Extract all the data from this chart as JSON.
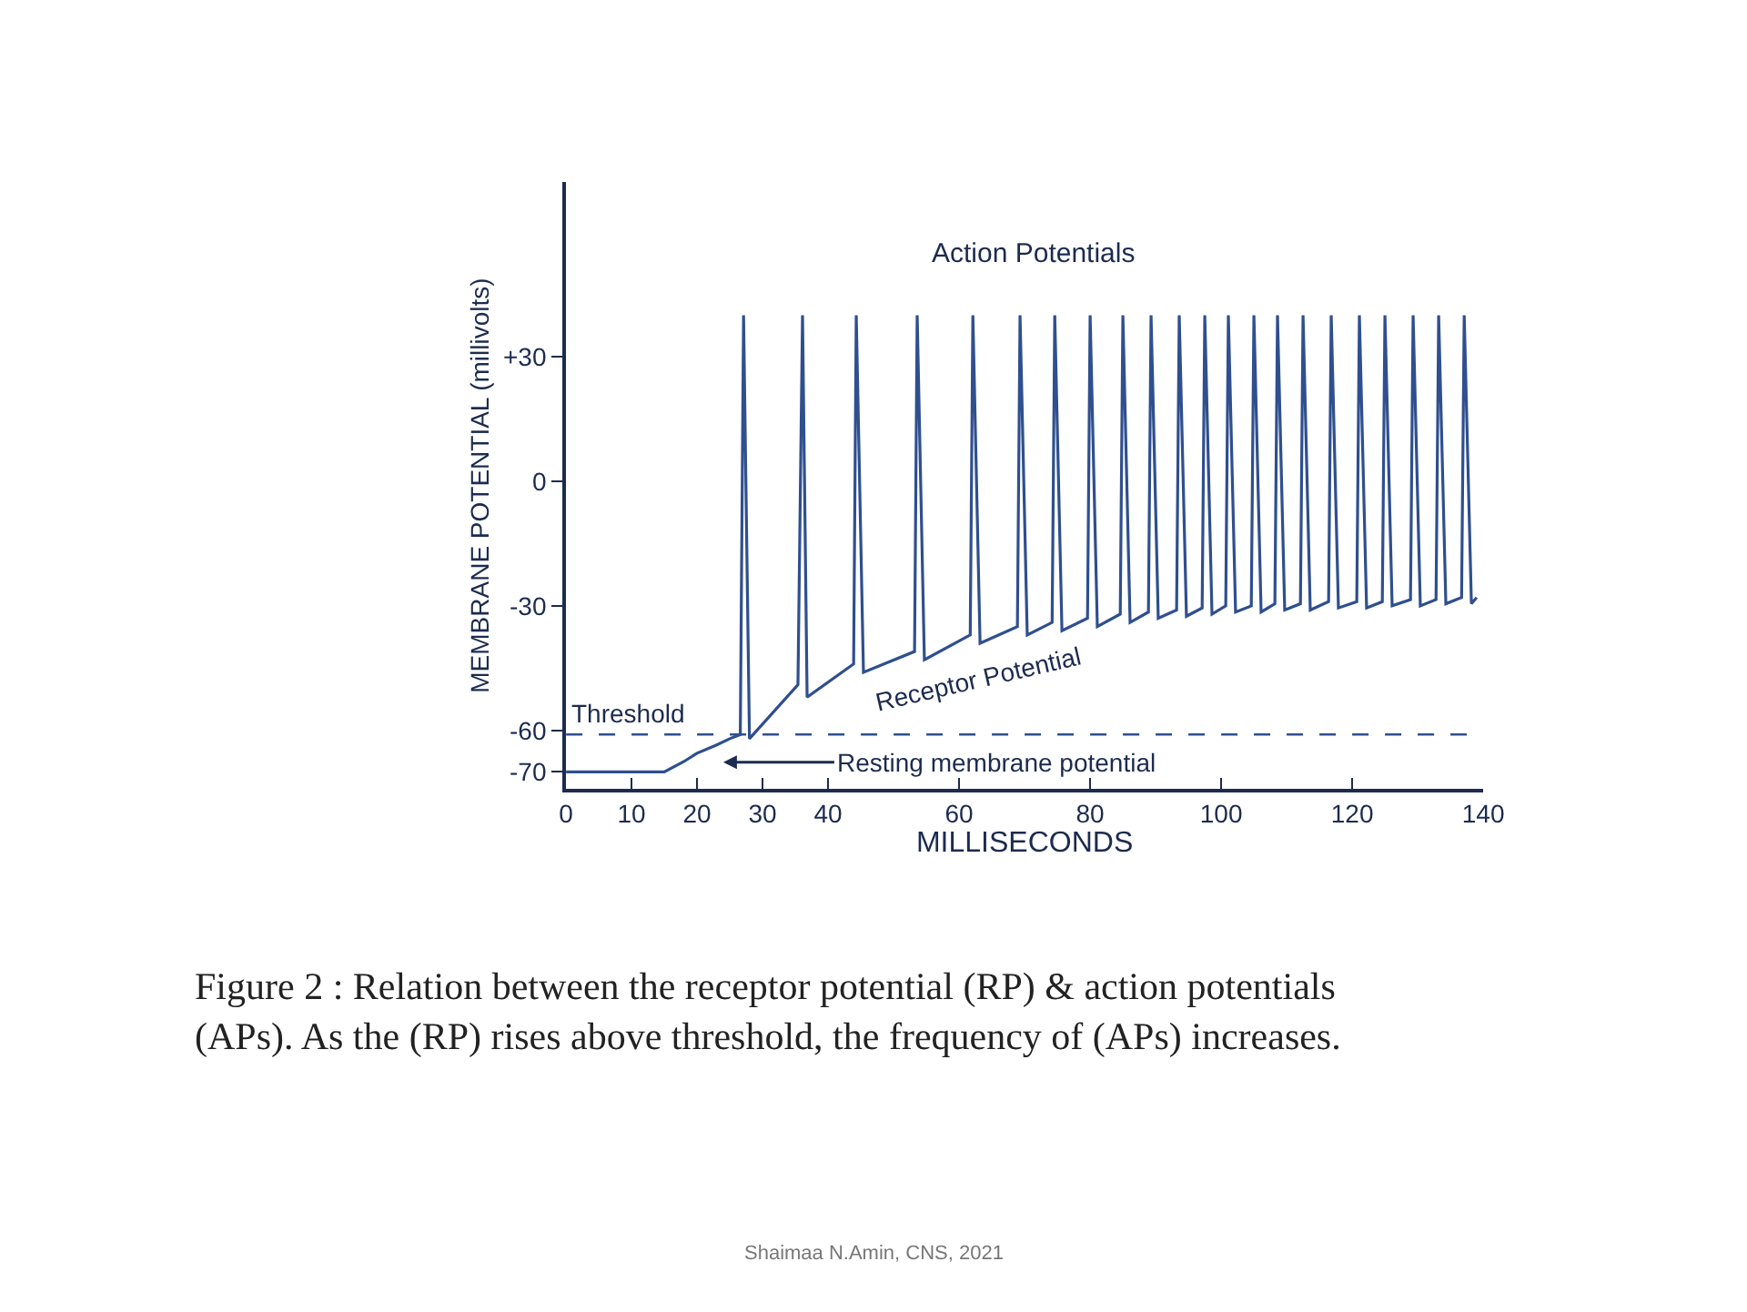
{
  "chart_data": [
    {
      "type": "line",
      "xlabel": "MILLISECONDS",
      "ylabel": "MEMBRANE POTENTIAL (millivolts)",
      "xlim": [
        0,
        140
      ],
      "xticks": [
        0,
        10,
        20,
        30,
        40,
        60,
        80,
        100,
        120,
        140
      ],
      "ylim": [
        -74,
        72
      ],
      "yticks": [
        -70,
        -60,
        -30,
        0,
        {
          "value": 30,
          "label": "+30"
        }
      ],
      "marker": "none",
      "line_style": "solid",
      "series": [
        {
          "color": "#2f4f8f",
          "x": [
            0,
            15,
            18,
            20,
            23,
            25,
            26.6,
            27.1,
            28,
            35.4,
            36.1,
            36.8,
            43.9,
            44.3,
            45.4,
            53.2,
            53.6,
            54.7,
            61.7,
            62.1,
            63.2,
            68.9,
            69.3,
            70.4,
            74.2,
            74.6,
            75.7,
            79.6,
            80,
            81.1,
            84.6,
            85,
            86.1,
            88.9,
            89.3,
            90.4,
            93.2,
            93.6,
            94.7,
            97.1,
            97.5,
            98.6,
            100.7,
            101.1,
            102.2,
            104.6,
            105,
            106.1,
            108.2,
            108.6,
            109.7,
            112.1,
            112.5,
            113.6,
            116.4,
            116.8,
            117.9,
            120.7,
            121.1,
            122.2,
            124.6,
            125,
            126.1,
            128.9,
            129.3,
            130.4,
            132.8,
            133.2,
            134.3,
            136.7,
            137.1,
            138.2,
            139
          ],
          "values": [
            -70,
            -70,
            -67.5,
            -65.5,
            -63.5,
            -62,
            -61,
            40,
            -62,
            -49,
            40,
            -52,
            -44,
            40,
            -46,
            -41,
            40,
            -43,
            -37,
            40,
            -39,
            -35,
            40,
            -37,
            -34,
            40,
            -36,
            -33,
            40,
            -35,
            -32,
            40,
            -34,
            -31.5,
            40,
            -33,
            -31,
            40,
            -32.5,
            -30.5,
            40,
            -32,
            -30,
            40,
            -31.5,
            -30,
            40,
            -31.5,
            -29.5,
            40,
            -31,
            -29.5,
            40,
            -31,
            -29,
            40,
            -30.5,
            -29,
            40,
            -30.5,
            -29,
            40,
            -30,
            -28.5,
            40,
            -30,
            -28.5,
            40,
            -29.5,
            -28,
            40,
            -29.5,
            -28
          ]
        }
      ],
      "ref_lines": [
        {
          "axis": "y",
          "value": -61,
          "label": "Threshold",
          "line_style": "dashed",
          "color": "#2f4f8f"
        }
      ],
      "annotations": [
        "Action Potentials",
        "Receptor Potential",
        "Resting membrane potential",
        "Figure 2 : Relation between the receptor potential (RP) & action potentials\n(APs). As the (RP) rises above threshold, the frequency of (APs) increases.",
        "Shaimaa N.Amin, CNS, 2021"
      ]
    }
  ]
}
